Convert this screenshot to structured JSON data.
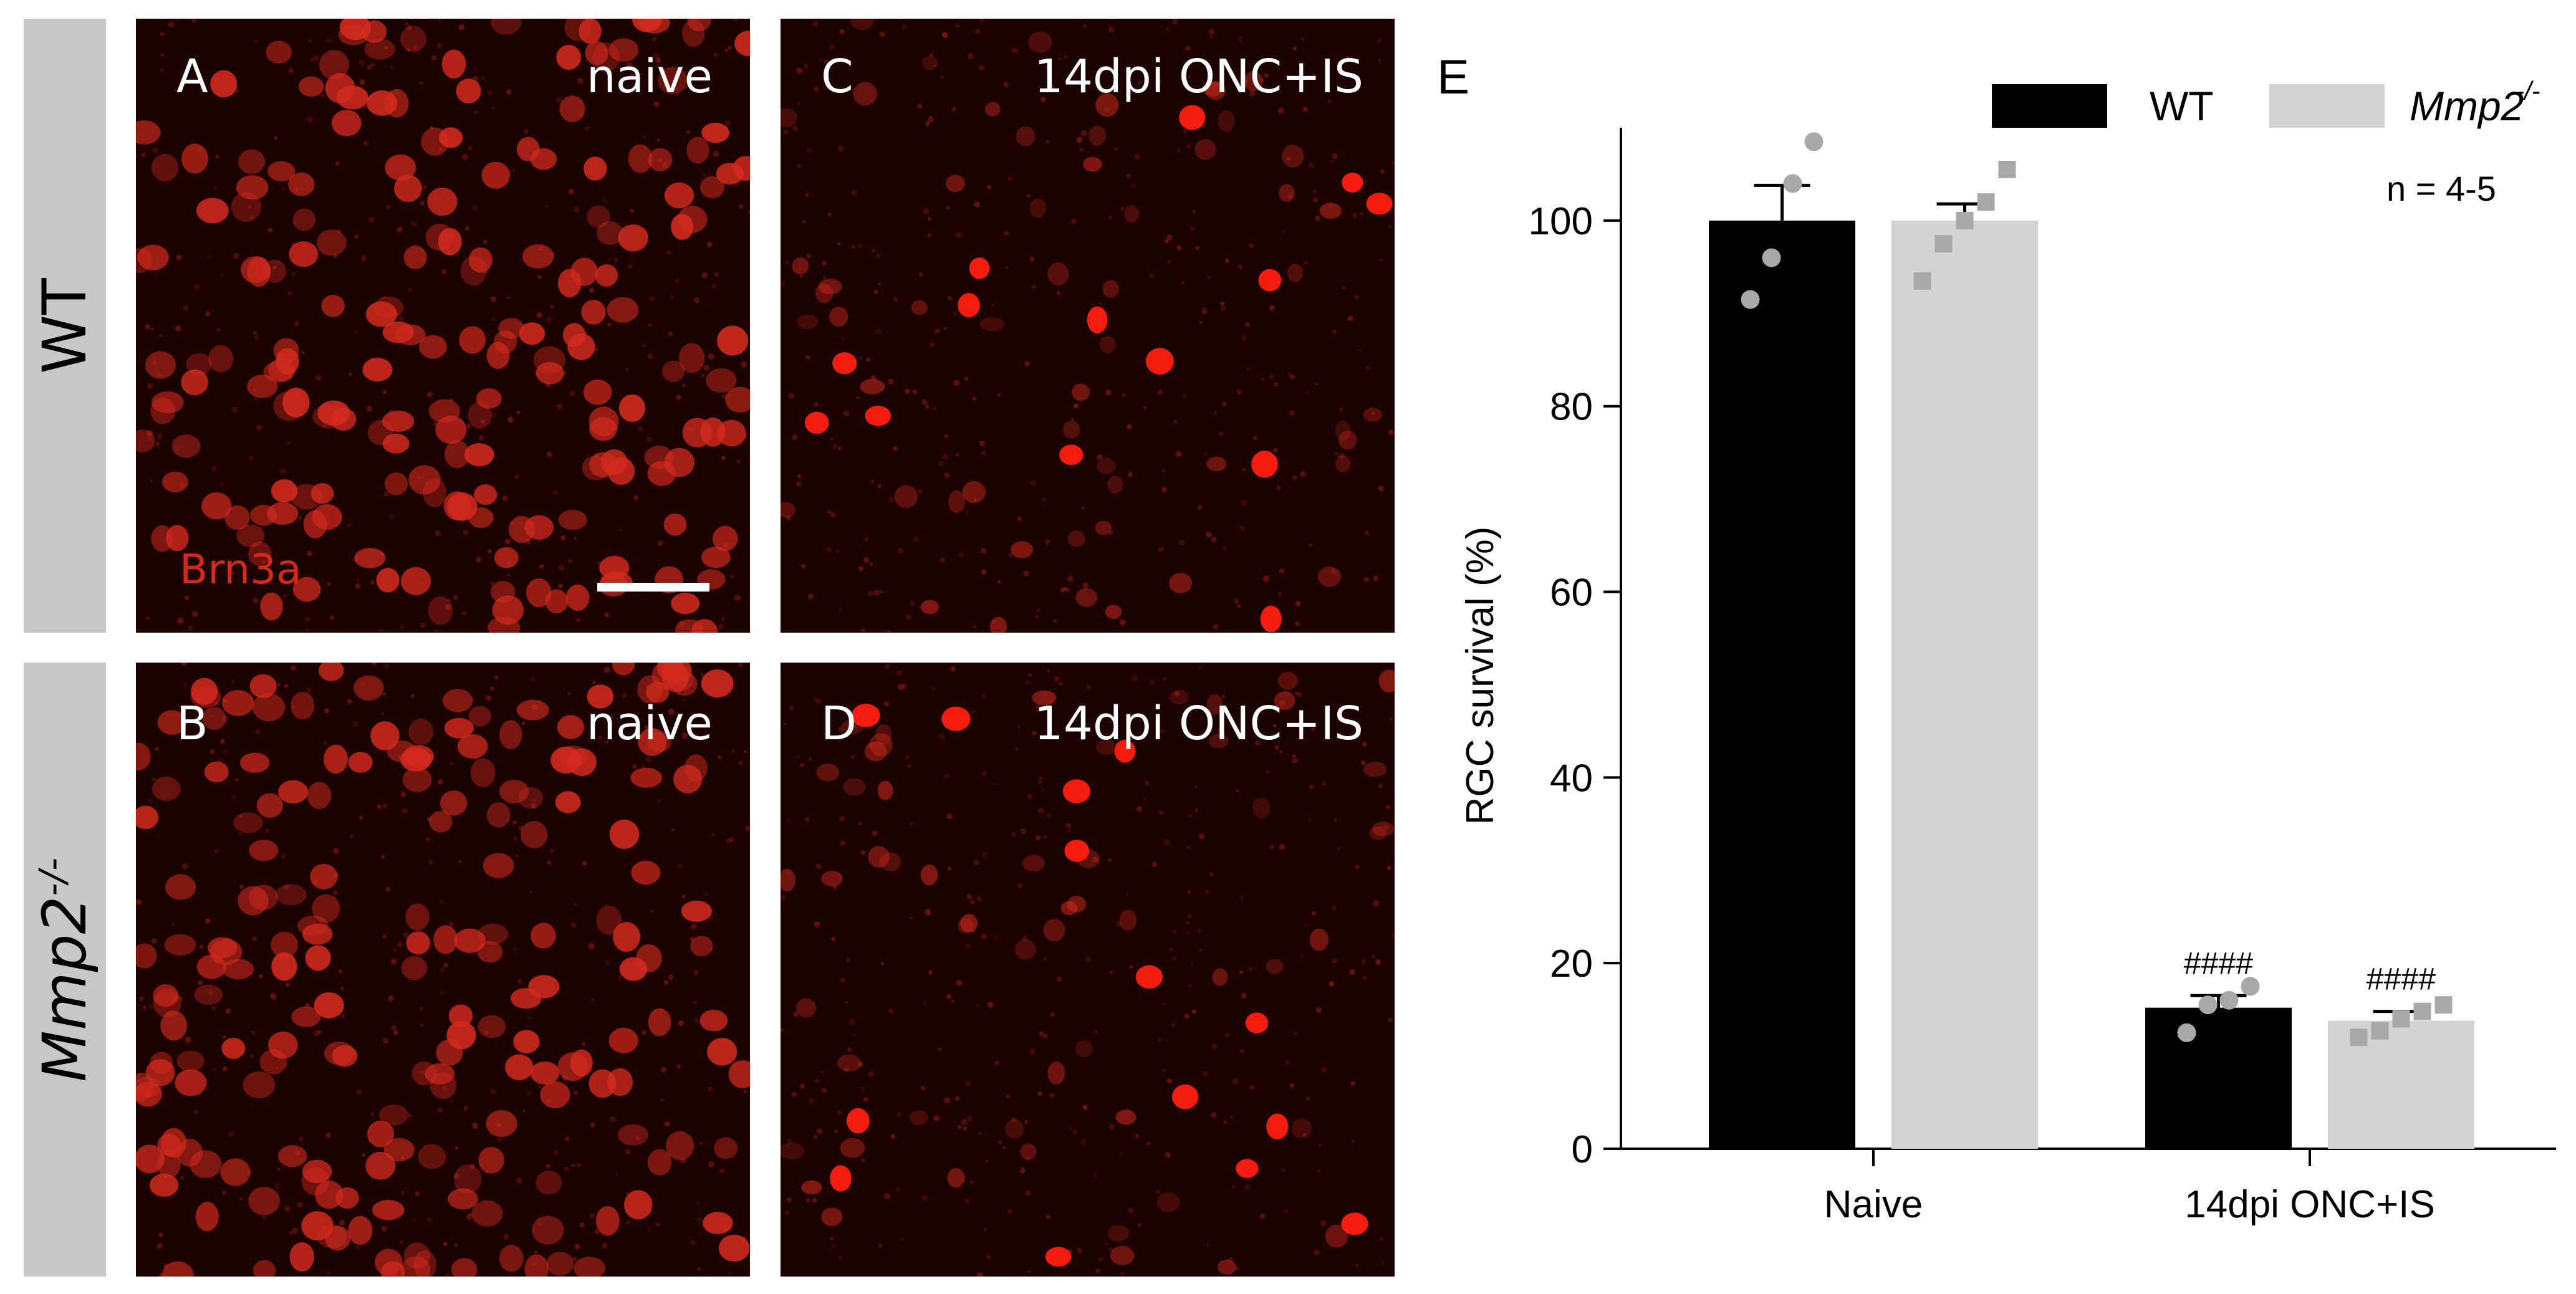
{
  "panels": [
    {
      "letter": "A",
      "condition": "naive",
      "stain": "Brn3a"
    },
    {
      "letter": "B",
      "condition": "naive"
    },
    {
      "letter": "C",
      "condition": "14dpi ONC+IS"
    },
    {
      "letter": "D",
      "condition": "14dpi ONC+IS"
    }
  ],
  "rows": [
    {
      "label": "WT"
    },
    {
      "label": "Mmp2",
      "sup": "-/-"
    }
  ],
  "colors": {
    "stain_red": "#d42a1e",
    "wt": "#000000",
    "ko": "#d3d3d3",
    "wt_dots": "#a8a8a8",
    "ko_dots": "#a8a8a8"
  },
  "chart_data": {
    "type": "bar",
    "panel_letter": "E",
    "categories": [
      "Naive",
      "14dpi ONC+IS"
    ],
    "ylabel": "RGC survival (%)",
    "ylim": [
      0,
      110
    ],
    "yticks": [
      0,
      20,
      40,
      60,
      80,
      100
    ],
    "annotation": "n = 4-5",
    "series": [
      {
        "name": "WT",
        "values": [
          100,
          15.2
        ],
        "errors": [
          3.8,
          1.3
        ],
        "points": [
          [
            91.5,
            96.0,
            104.0,
            108.5
          ],
          [
            12.5,
            15.5,
            16.0,
            17.5
          ]
        ]
      },
      {
        "name": "Mmp2",
        "name_sup": "-/-",
        "values": [
          100,
          13.8
        ],
        "errors": [
          1.8,
          1.0
        ],
        "points": [
          [
            93.5,
            97.5,
            100.0,
            102.0,
            105.5
          ],
          [
            12.0,
            12.7,
            14.0,
            14.8,
            15.5
          ]
        ]
      }
    ],
    "significance": [
      "####",
      "####"
    ]
  }
}
